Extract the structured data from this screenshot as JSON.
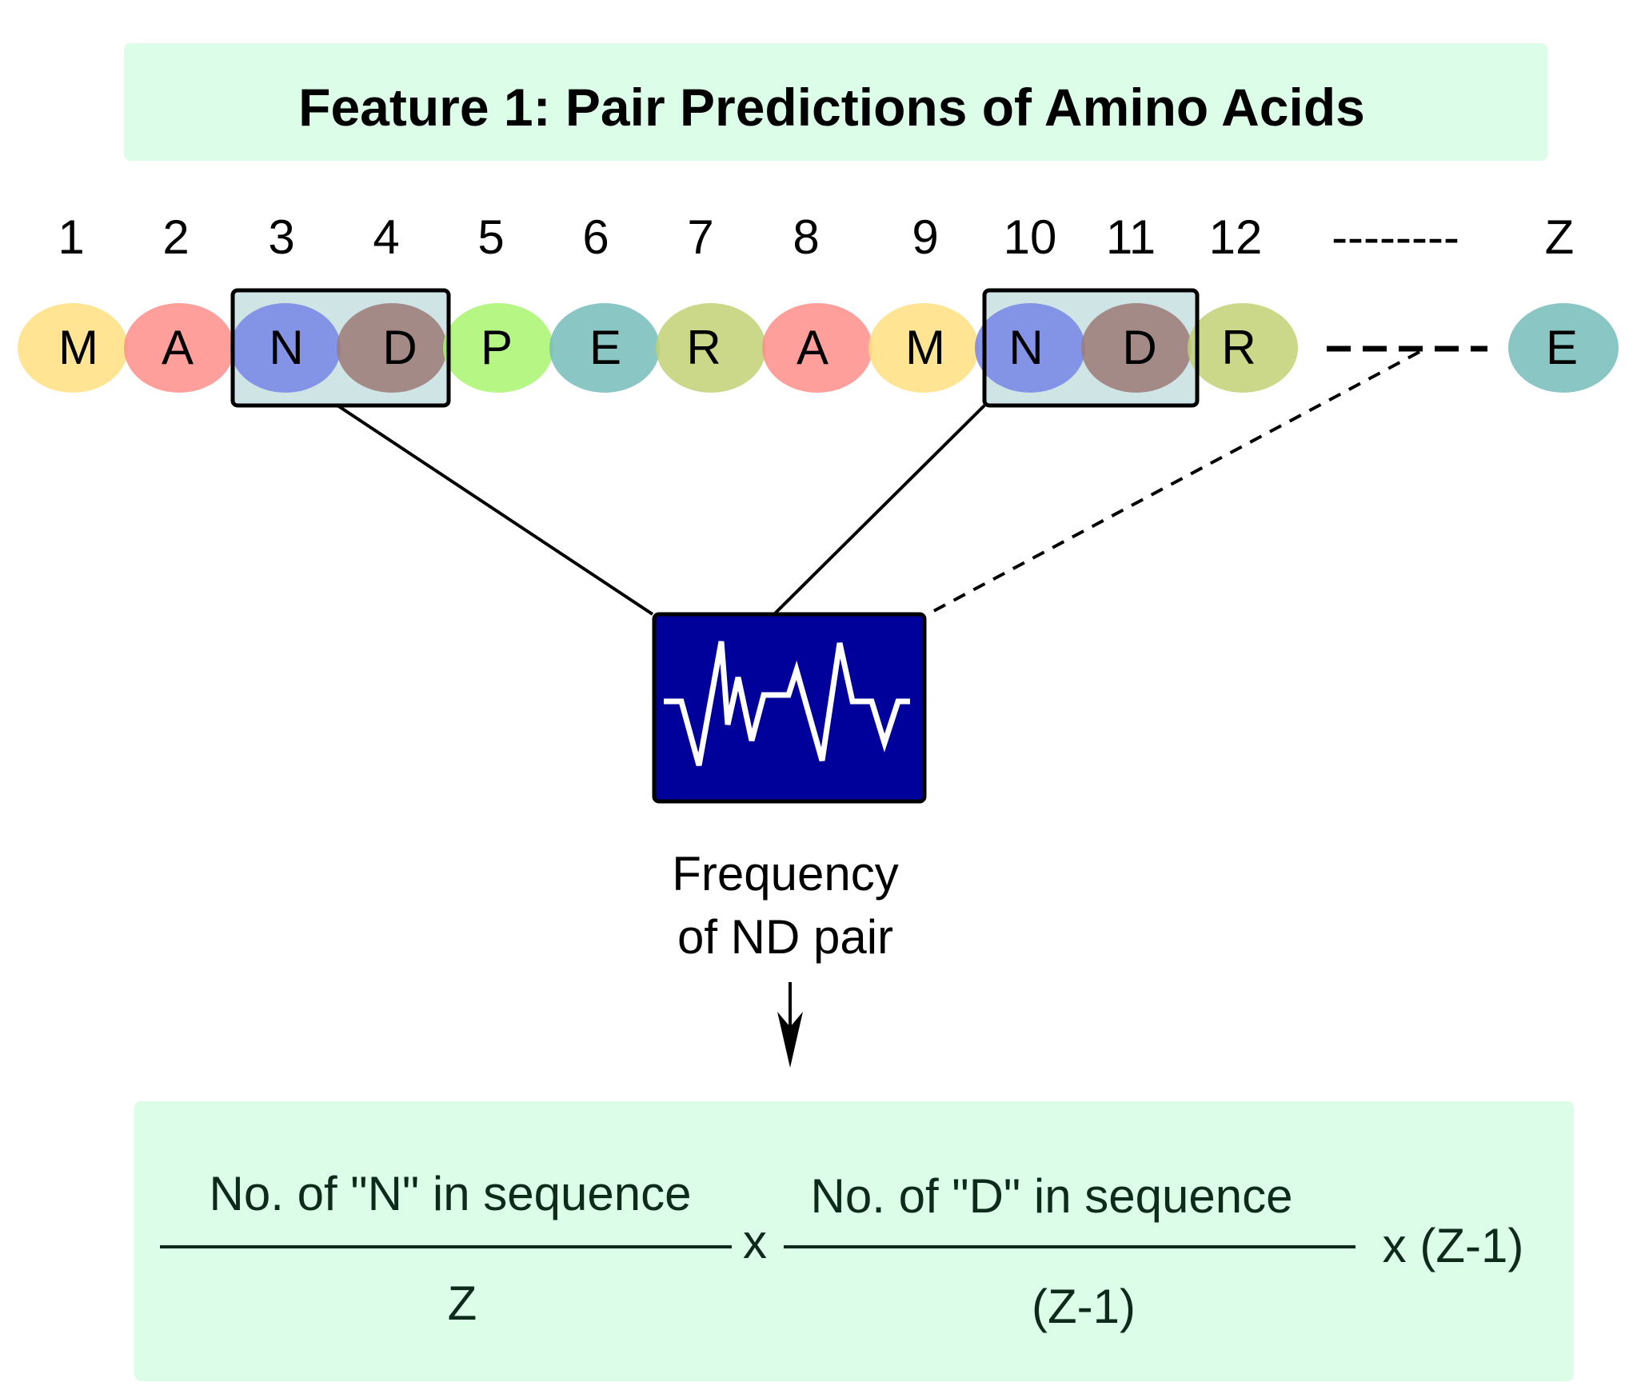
{
  "title": "Feature 1: Pair Predictions of Amino Acids",
  "indices": [
    "1",
    "2",
    "3",
    "4",
    "5",
    "6",
    "7",
    "8",
    "9",
    "10",
    "11",
    "12",
    "--------",
    "Z"
  ],
  "residues": [
    {
      "letter": "M",
      "color": "#ffe080"
    },
    {
      "letter": "A",
      "color": "#ff8e8a"
    },
    {
      "letter": "N",
      "color": "#7585e6"
    },
    {
      "letter": "D",
      "color": "#9c7a77"
    },
    {
      "letter": "P",
      "color": "#a8f570"
    },
    {
      "letter": "E",
      "color": "#74bcba"
    },
    {
      "letter": "R",
      "color": "#c2d176"
    },
    {
      "letter": "A",
      "color": "#ff8e8a"
    },
    {
      "letter": "M",
      "color": "#ffe080"
    },
    {
      "letter": "N",
      "color": "#7585e6"
    },
    {
      "letter": "D",
      "color": "#9c7a77"
    },
    {
      "letter": "R",
      "color": "#c2d176"
    },
    {
      "letter": "E",
      "color": "#74bcba"
    }
  ],
  "highlighted_pairs": [
    [
      "3",
      "4"
    ],
    [
      "10",
      "11"
    ]
  ],
  "caption": {
    "line1": "Frequency",
    "line2": "of ND pair"
  },
  "formula": {
    "numerator_n": "No. of \"N\" in sequence",
    "denominator_n": "Z",
    "times": "x",
    "numerator_d": "No. of \"D\" in sequence",
    "denominator_d": "(Z-1)",
    "tail": "x (Z-1)"
  },
  "colors": {
    "panel": "#dcfde8",
    "pair_box_fill": "#cfe4e4",
    "monitor": "#00009a",
    "formula_text": "#0d2a1a"
  }
}
